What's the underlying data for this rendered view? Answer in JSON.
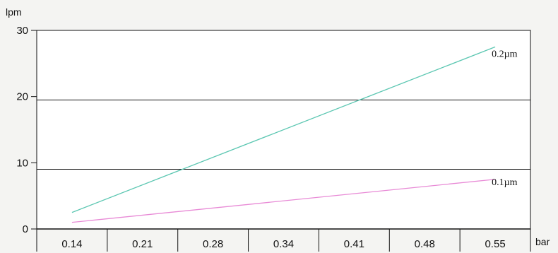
{
  "chart_data": {
    "type": "line",
    "ylabel": "lpm",
    "xlabel": "bar",
    "categories": [
      "0.14",
      "0.21",
      "0.28",
      "0.34",
      "0.41",
      "0.48",
      "0.55"
    ],
    "ylim": [
      0,
      30
    ],
    "yticks": [
      "0",
      "10",
      "20",
      "30"
    ],
    "grid": "horizontal at 10 and 20",
    "series": [
      {
        "name": "0.2µm",
        "color": "#5cc7b2",
        "points": [
          {
            "x": 0.14,
            "y": 2.5
          },
          {
            "x": 0.55,
            "y": 27.5
          }
        ]
      },
      {
        "name": "0.1µm",
        "color": "#e88ad6",
        "points": [
          {
            "x": 0.14,
            "y": 1.0
          },
          {
            "x": 0.55,
            "y": 7.5
          }
        ]
      }
    ]
  }
}
